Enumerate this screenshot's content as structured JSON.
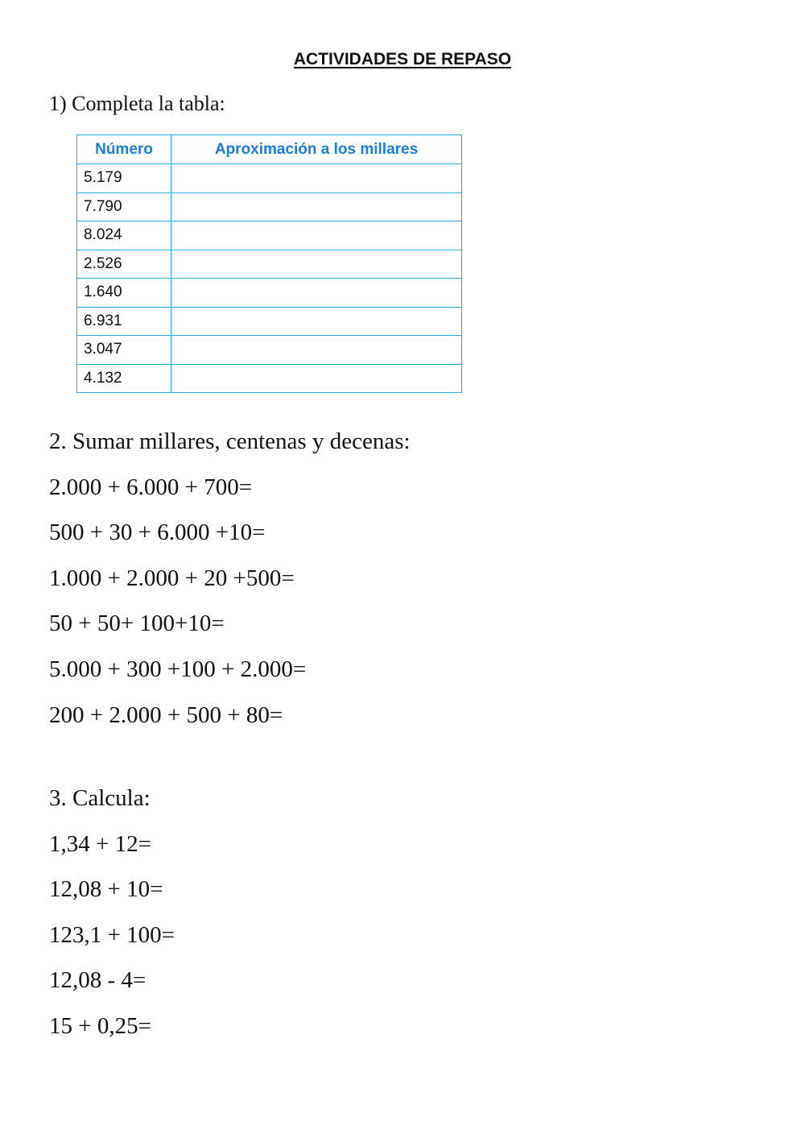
{
  "title": "ACTIVIDADES DE REPASO",
  "section1": {
    "heading": "1) Completa la tabla:",
    "table": {
      "headers": [
        "Número",
        "Aproximación a los millares"
      ],
      "rows": [
        "5.179",
        "7.790",
        "8.024",
        "2.526",
        "1.640",
        "6.931",
        "3.047",
        "4.132"
      ]
    }
  },
  "section2": {
    "heading": "2. Sumar millares, centenas y decenas:",
    "items": [
      "2.000 + 6.000 + 700=",
      "500 + 30 + 6.000 +10=",
      "1.000 + 2.000 + 20 +500=",
      "50 + 50+ 100+10=",
      "5.000 + 300 +100 + 2.000=",
      "200 + 2.000 + 500 + 80="
    ]
  },
  "section3": {
    "heading": "3. Calcula:",
    "items": [
      "1,34 + 12=",
      "12,08 + 10=",
      "123,1 + 100=",
      "12,08 - 4=",
      "15 + 0,25="
    ]
  },
  "colors": {
    "table_border": "#2aa8d8",
    "header_text": "#1a7fd8"
  }
}
